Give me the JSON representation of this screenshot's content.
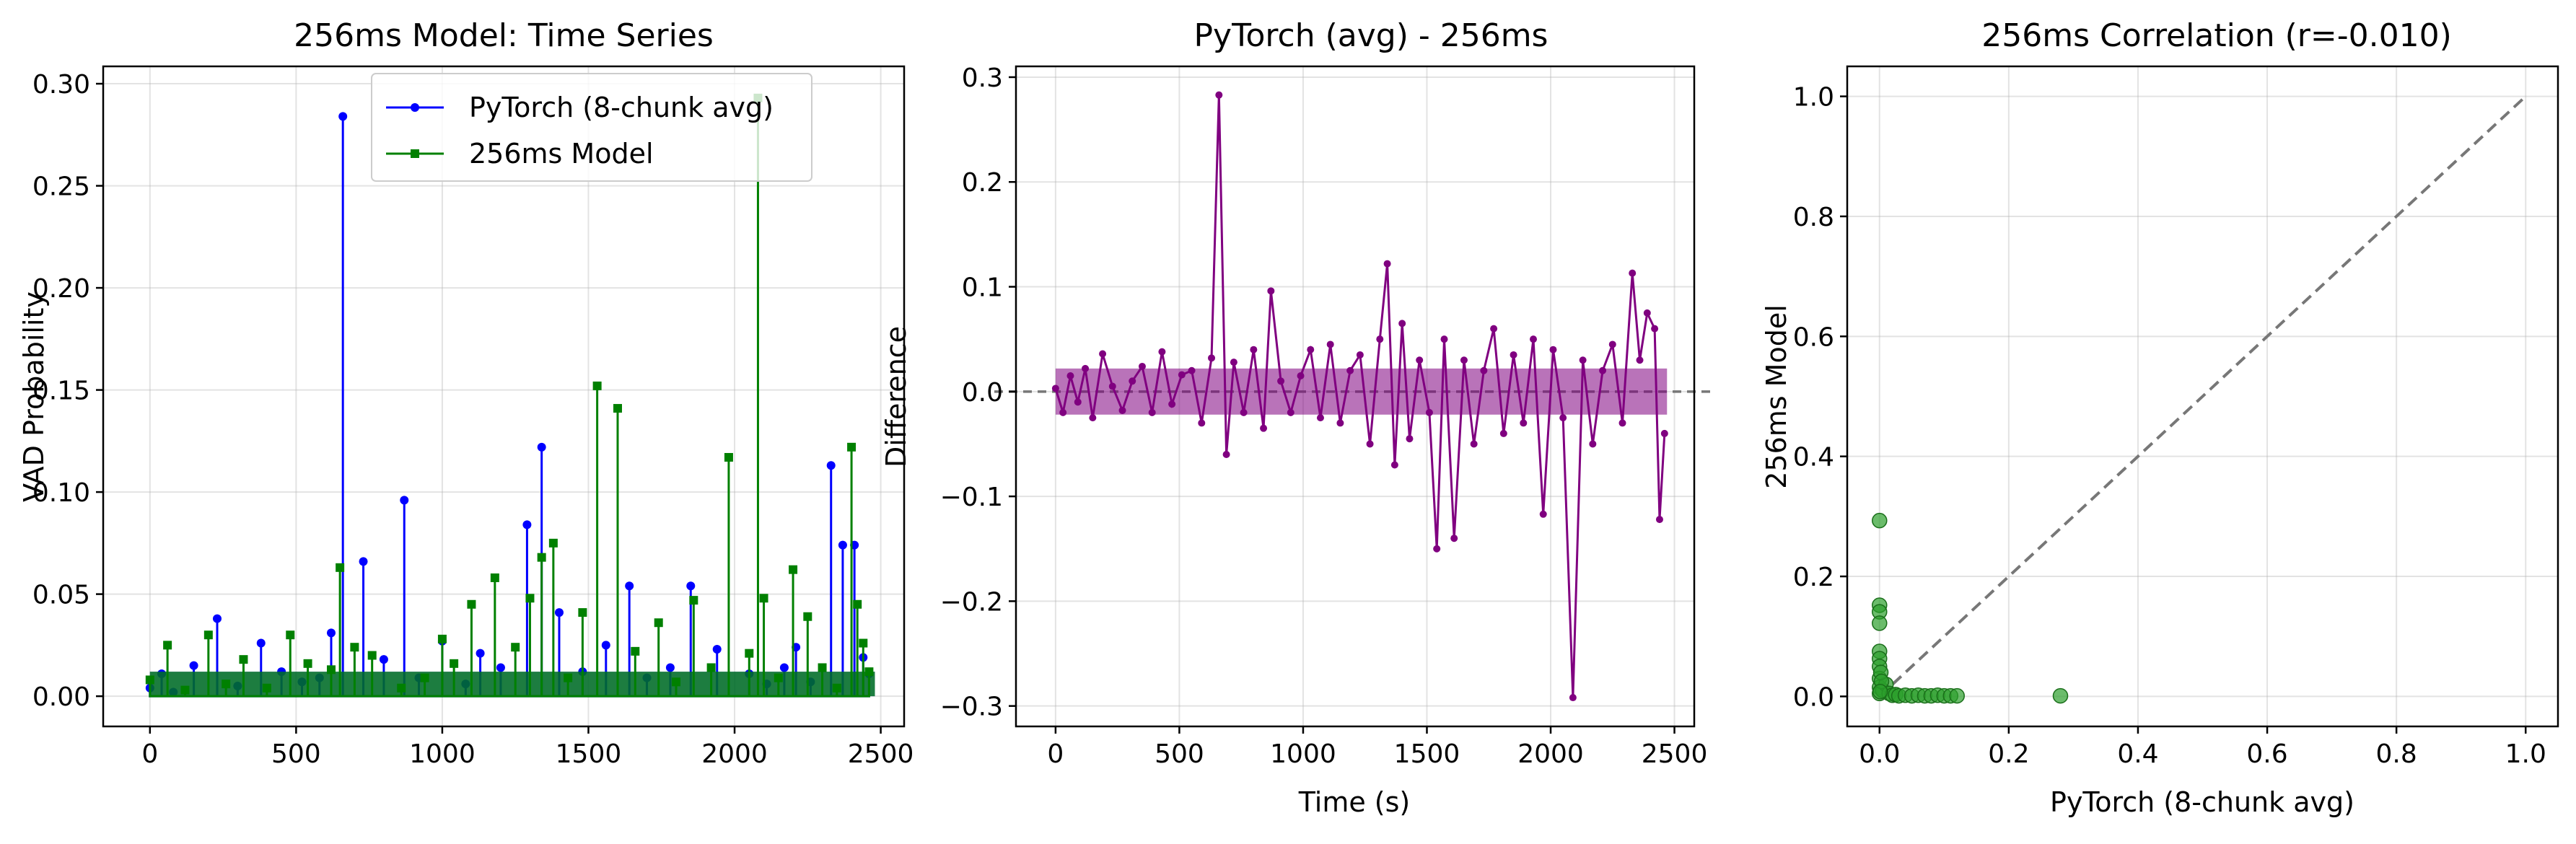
{
  "colors": {
    "pytorch": "#0000ff",
    "model": "#008000",
    "diff": "#800080",
    "scatter": "#2ca02c",
    "identity": "#777777",
    "zero_line": "#777777"
  },
  "chart_data": [
    {
      "type": "line",
      "title": "256ms Model: Time Series",
      "xlabel": "",
      "ylabel": "VAD Probability",
      "xlim": [
        -160,
        2580
      ],
      "ylim": [
        -0.0148,
        0.3085
      ],
      "xticks": [
        0,
        500,
        1000,
        1500,
        2000,
        2500
      ],
      "xtick_labels": [
        "0",
        "500",
        "1000",
        "1500",
        "2000",
        "2500"
      ],
      "yticks": [
        0,
        0.05,
        0.1,
        0.15,
        0.2,
        0.25,
        0.3
      ],
      "ytick_labels": [
        "0.00",
        "0.05",
        "0.10",
        "0.15",
        "0.20",
        "0.25",
        "0.30"
      ],
      "grid": true,
      "legend": "top-right",
      "series": [
        {
          "name": "PyTorch (8-chunk avg)",
          "marker": "circle",
          "x": [
            0,
            40,
            80,
            150,
            230,
            300,
            380,
            450,
            520,
            580,
            620,
            660,
            730,
            800,
            870,
            920,
            1000,
            1080,
            1130,
            1200,
            1290,
            1340,
            1400,
            1480,
            1560,
            1640,
            1700,
            1780,
            1850,
            1940,
            2050,
            2110,
            2170,
            2210,
            2260,
            2330,
            2370,
            2410,
            2440,
            2460
          ],
          "values": [
            0.004,
            0.011,
            0.002,
            0.015,
            0.038,
            0.005,
            0.026,
            0.012,
            0.007,
            0.009,
            0.031,
            0.284,
            0.066,
            0.018,
            0.096,
            0.009,
            0.027,
            0.006,
            0.021,
            0.014,
            0.084,
            0.122,
            0.041,
            0.012,
            0.025,
            0.054,
            0.009,
            0.014,
            0.054,
            0.023,
            0.011,
            0.006,
            0.014,
            0.024,
            0.007,
            0.113,
            0.074,
            0.074,
            0.019,
            0.011
          ]
        },
        {
          "name": "256ms Model",
          "marker": "square",
          "x": [
            0,
            60,
            120,
            200,
            260,
            320,
            400,
            480,
            540,
            620,
            650,
            700,
            760,
            860,
            940,
            1000,
            1040,
            1100,
            1180,
            1250,
            1300,
            1340,
            1380,
            1430,
            1480,
            1530,
            1600,
            1660,
            1740,
            1800,
            1860,
            1920,
            1980,
            2050,
            2080,
            2100,
            2150,
            2200,
            2250,
            2300,
            2350,
            2400,
            2420,
            2440,
            2460
          ],
          "values": [
            0.008,
            0.025,
            0.003,
            0.03,
            0.006,
            0.018,
            0.004,
            0.03,
            0.016,
            0.013,
            0.063,
            0.024,
            0.02,
            0.004,
            0.009,
            0.028,
            0.016,
            0.045,
            0.058,
            0.024,
            0.048,
            0.068,
            0.075,
            0.009,
            0.041,
            0.152,
            0.141,
            0.022,
            0.036,
            0.007,
            0.047,
            0.014,
            0.117,
            0.021,
            0.293,
            0.048,
            0.009,
            0.062,
            0.039,
            0.014,
            0.004,
            0.122,
            0.045,
            0.026,
            0.012
          ]
        }
      ]
    },
    {
      "type": "line",
      "title": "PyTorch (avg) - 256ms",
      "xlabel": "Time (s)",
      "ylabel": "Difference",
      "xlim": [
        -160,
        2580
      ],
      "ylim": [
        -0.3195,
        0.3103
      ],
      "xticks": [
        0,
        500,
        1000,
        1500,
        2000,
        2500
      ],
      "xtick_labels": [
        "0",
        "500",
        "1000",
        "1500",
        "2000",
        "2500"
      ],
      "yticks": [
        -0.3,
        -0.2,
        -0.1,
        0,
        0.1,
        0.2,
        0.3
      ],
      "ytick_labels": [
        "−0.3",
        "−0.2",
        "−0.1",
        "0.0",
        "0.1",
        "0.2",
        "0.3"
      ],
      "grid": true,
      "series": [
        {
          "name": "",
          "marker": "circle",
          "x": [
            0,
            30,
            60,
            90,
            120,
            150,
            190,
            230,
            270,
            310,
            350,
            390,
            430,
            470,
            510,
            550,
            590,
            630,
            660,
            690,
            720,
            760,
            800,
            840,
            870,
            910,
            950,
            990,
            1030,
            1070,
            1110,
            1150,
            1190,
            1230,
            1270,
            1310,
            1340,
            1370,
            1400,
            1430,
            1470,
            1510,
            1540,
            1570,
            1610,
            1650,
            1690,
            1730,
            1770,
            1810,
            1850,
            1890,
            1930,
            1970,
            2010,
            2050,
            2090,
            2130,
            2170,
            2210,
            2250,
            2290,
            2330,
            2360,
            2390,
            2420,
            2440,
            2460
          ],
          "values": [
            0.003,
            -0.02,
            0.015,
            -0.01,
            0.022,
            -0.025,
            0.036,
            0.005,
            -0.018,
            0.01,
            0.024,
            -0.02,
            0.038,
            -0.012,
            0.016,
            0.02,
            -0.03,
            0.032,
            0.283,
            -0.06,
            0.028,
            -0.02,
            0.04,
            -0.035,
            0.096,
            0.01,
            -0.02,
            0.015,
            0.04,
            -0.025,
            0.045,
            -0.03,
            0.02,
            0.035,
            -0.05,
            0.05,
            0.122,
            -0.07,
            0.065,
            -0.045,
            0.03,
            -0.02,
            -0.15,
            0.05,
            -0.14,
            0.03,
            -0.05,
            0.02,
            0.06,
            -0.04,
            0.035,
            -0.03,
            0.05,
            -0.117,
            0.04,
            -0.025,
            -0.292,
            0.03,
            -0.05,
            0.02,
            0.045,
            -0.03,
            0.113,
            0.03,
            0.075,
            0.06,
            -0.122,
            -0.04
          ]
        }
      ],
      "reference_line_y": 0
    },
    {
      "type": "scatter",
      "title": "256ms Correlation (r=-0.010)",
      "xlabel": "PyTorch (8-chunk avg)",
      "ylabel": "256ms Model",
      "xlim": [
        -0.05,
        1.05
      ],
      "ylim": [
        -0.05,
        1.05
      ],
      "xticks": [
        0,
        0.2,
        0.4,
        0.6,
        0.8,
        1.0
      ],
      "xtick_labels": [
        "0.0",
        "0.2",
        "0.4",
        "0.6",
        "0.8",
        "1.0"
      ],
      "yticks": [
        0,
        0.2,
        0.4,
        0.6,
        0.8,
        1.0
      ],
      "ytick_labels": [
        "0.0",
        "0.2",
        "0.4",
        "0.6",
        "0.8",
        "1.0"
      ],
      "grid": true,
      "identity_line": [
        [
          0,
          0
        ],
        [
          1,
          1
        ]
      ],
      "series": [
        {
          "name": "",
          "x": [
            0,
            0,
            0,
            0,
            0,
            0,
            0,
            0,
            0,
            0,
            0.005,
            0.01,
            0.015,
            0.02,
            0.025,
            0.03,
            0.04,
            0.05,
            0.06,
            0.07,
            0.08,
            0.09,
            0.1,
            0.11,
            0.12,
            0.28,
            0.002,
            0.003,
            0.001
          ],
          "y": [
            0.293,
            0.152,
            0.141,
            0.122,
            0.075,
            0.063,
            0.05,
            0.03,
            0.015,
            0.005,
            0.01,
            0.02,
            0.005,
            0.002,
            0.003,
            0.001,
            0.002,
            0.001,
            0.002,
            0.001,
            0.001,
            0.002,
            0.001,
            0.001,
            0.001,
            0.001,
            0.04,
            0.025,
            0.008
          ]
        }
      ]
    }
  ]
}
